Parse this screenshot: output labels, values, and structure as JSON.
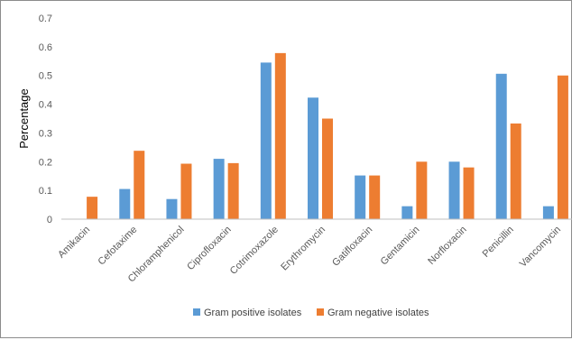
{
  "colors": {
    "series1": "#5b9bd5",
    "series2": "#ed7d31",
    "axis": "#bfbfbf",
    "text": "#595959"
  },
  "chart_data": {
    "type": "bar",
    "title": "",
    "xlabel": "",
    "ylabel": "Percentage",
    "ylim": [
      0,
      0.7
    ],
    "yticks": [
      "0",
      "0.1",
      "0.2",
      "0.3",
      "0.4",
      "0.5",
      "0.6",
      "0.7"
    ],
    "grid": false,
    "legend_position": "bottom",
    "categories": [
      "Amikacin",
      "Cefotaxime",
      "Chloramphenicol",
      "Ciprofloxacin",
      "Cotrimoxazole",
      "Erythromycin",
      "Gatifloxacin",
      "Gentamicin",
      "Norfloxacin",
      "Penicillin",
      "Vancomycin"
    ],
    "series": [
      {
        "name": "Gram positive isolates",
        "values": [
          0,
          0.105,
          0.07,
          0.21,
          0.545,
          0.423,
          0.152,
          0.045,
          0.2,
          0.506,
          0.045
        ]
      },
      {
        "name": "Gram negative isolates",
        "values": [
          0.078,
          0.238,
          0.193,
          0.195,
          0.578,
          0.35,
          0.152,
          0.2,
          0.18,
          0.333,
          0.5
        ]
      }
    ]
  }
}
